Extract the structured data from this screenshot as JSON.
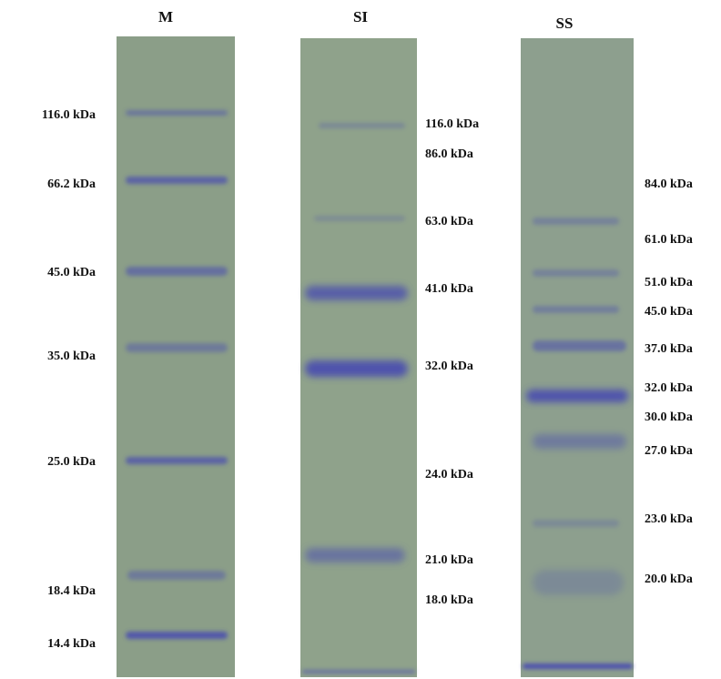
{
  "lanes": [
    {
      "title": "M",
      "labels": [
        "116.0 kDa",
        "66.2 kDa",
        "45.0 kDa",
        "35.0 kDa",
        "25.0 kDa",
        "18.4 kDa",
        "14.4 kDa"
      ]
    },
    {
      "title": "SI",
      "labels": [
        "116.0 kDa",
        "86.0 kDa",
        "63.0 kDa",
        "41.0 kDa",
        "32.0 kDa",
        "24.0 kDa",
        "21.0 kDa",
        "18.0 kDa"
      ]
    },
    {
      "title": "SS",
      "labels": [
        "84.0 kDa",
        "61.0 kDa",
        "51.0 kDa",
        "45.0 kDa",
        "37.0 kDa",
        "32.0 kDa",
        "30.0 kDa",
        "27.0 kDa",
        "23.0 kDa",
        "20.0 kDa"
      ]
    }
  ]
}
